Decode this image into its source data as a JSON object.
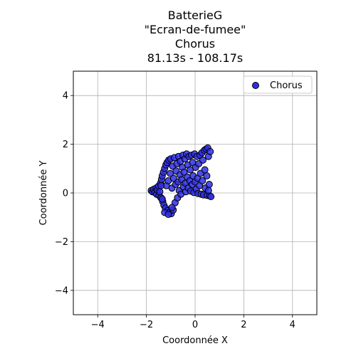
{
  "chart_data": {
    "type": "scatter",
    "title_lines": [
      "BatterieG",
      "\"Ecran-de-fumee\"",
      "Chorus",
      "81.13s - 108.17s"
    ],
    "xlabel": "Coordonnée X",
    "ylabel": "Coordonnée Y",
    "xlim": [
      -5,
      5
    ],
    "ylim": [
      -5,
      5
    ],
    "xticks": [
      -4,
      -2,
      0,
      2,
      4
    ],
    "yticks": [
      -4,
      -2,
      0,
      2,
      4
    ],
    "xtick_labels": [
      "−4",
      "−2",
      "0",
      "2",
      "4"
    ],
    "ytick_labels": [
      "−4",
      "−2",
      "0",
      "2",
      "4"
    ],
    "grid": true,
    "legend_position": "top-right",
    "series": [
      {
        "name": "Chorus",
        "color": "#2e2ee6",
        "edge_color": "#000000",
        "points": [
          [
            -1.8,
            0.1
          ],
          [
            -1.75,
            0.05
          ],
          [
            -1.7,
            0.15
          ],
          [
            -1.65,
            0.02
          ],
          [
            -1.6,
            0.2
          ],
          [
            -1.58,
            -0.05
          ],
          [
            -1.55,
            0.12
          ],
          [
            -1.5,
            0.28
          ],
          [
            -1.48,
            -0.1
          ],
          [
            -1.45,
            0.05
          ],
          [
            -1.42,
            0.4
          ],
          [
            -1.4,
            -0.2
          ],
          [
            -1.38,
            0.55
          ],
          [
            -1.35,
            0.7
          ],
          [
            -1.33,
            -0.35
          ],
          [
            -1.3,
            0.85
          ],
          [
            -1.28,
            -0.5
          ],
          [
            -1.25,
            1.0
          ],
          [
            -1.22,
            -0.62
          ],
          [
            -1.2,
            1.15
          ],
          [
            -1.18,
            0.3
          ],
          [
            -1.15,
            1.25
          ],
          [
            -1.12,
            -0.72
          ],
          [
            -1.1,
            0.5
          ],
          [
            -1.08,
            1.35
          ],
          [
            -1.05,
            -0.8
          ],
          [
            -1.02,
            0.8
          ],
          [
            -1.0,
            1.4
          ],
          [
            -0.98,
            -0.85
          ],
          [
            -0.95,
            0.2
          ],
          [
            -0.92,
            1.1
          ],
          [
            -0.9,
            -0.7
          ],
          [
            -0.88,
            0.6
          ],
          [
            -0.85,
            1.45
          ],
          [
            -0.82,
            -0.4
          ],
          [
            -0.8,
            0.35
          ],
          [
            -0.78,
            0.9
          ],
          [
            -0.75,
            1.2
          ],
          [
            -0.72,
            -0.2
          ],
          [
            -0.7,
            0.45
          ],
          [
            -0.68,
            1.5
          ],
          [
            -0.65,
            0.1
          ],
          [
            -0.62,
            0.75
          ],
          [
            -0.6,
            1.3
          ],
          [
            -0.58,
            -0.05
          ],
          [
            -0.55,
            0.55
          ],
          [
            -0.52,
            1.05
          ],
          [
            -0.5,
            1.55
          ],
          [
            -0.48,
            0.25
          ],
          [
            -0.45,
            0.85
          ],
          [
            -0.42,
            1.4
          ],
          [
            -0.4,
            0.4
          ],
          [
            -0.38,
            0.05
          ],
          [
            -0.35,
            1.6
          ],
          [
            -0.32,
            0.65
          ],
          [
            -0.3,
            1.15
          ],
          [
            -0.28,
            0.2
          ],
          [
            -0.25,
            1.5
          ],
          [
            -0.22,
            0.5
          ],
          [
            -0.2,
            0.95
          ],
          [
            -0.18,
            0.08
          ],
          [
            -0.15,
            1.55
          ],
          [
            -0.12,
            0.35
          ],
          [
            -0.1,
            1.25
          ],
          [
            -0.08,
            0.7
          ],
          [
            -0.05,
            0.02
          ],
          [
            -0.02,
            1.6
          ],
          [
            0.0,
            0.45
          ],
          [
            0.02,
            1.05
          ],
          [
            0.05,
            0.15
          ],
          [
            0.08,
            1.5
          ],
          [
            0.1,
            0.6
          ],
          [
            0.12,
            -0.02
          ],
          [
            0.15,
            1.2
          ],
          [
            0.18,
            0.3
          ],
          [
            0.2,
            1.55
          ],
          [
            0.22,
            0.8
          ],
          [
            0.25,
            -0.05
          ],
          [
            0.28,
            1.65
          ],
          [
            0.3,
            0.5
          ],
          [
            0.32,
            1.35
          ],
          [
            0.35,
            -0.08
          ],
          [
            0.38,
            1.75
          ],
          [
            0.4,
            0.95
          ],
          [
            0.42,
            0.2
          ],
          [
            0.45,
            1.8
          ],
          [
            0.48,
            0.7
          ],
          [
            0.5,
            -0.1
          ],
          [
            0.52,
            1.85
          ],
          [
            0.55,
            1.5
          ],
          [
            0.58,
            0.35
          ],
          [
            0.6,
            -0.12
          ],
          [
            0.62,
            1.7
          ],
          [
            0.65,
            -0.15
          ],
          [
            0.55,
            0.1
          ],
          [
            -1.25,
            -0.8
          ],
          [
            -1.1,
            -0.88
          ],
          [
            -0.95,
            -0.6
          ],
          [
            -1.35,
            -0.25
          ],
          [
            -1.4,
            0.3
          ]
        ]
      }
    ]
  }
}
